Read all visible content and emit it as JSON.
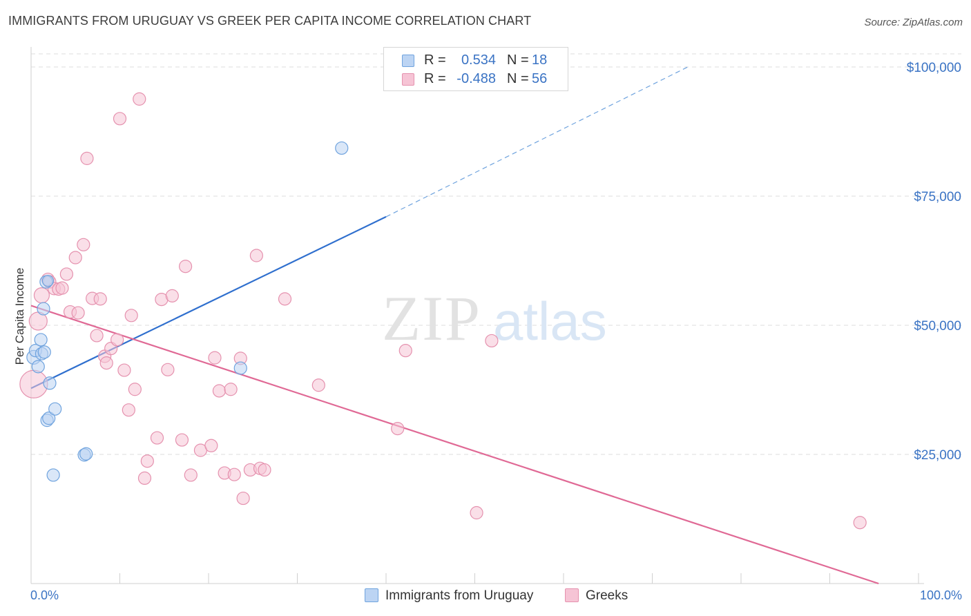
{
  "title": "IMMIGRANTS FROM URUGUAY VS GREEK PER CAPITA INCOME CORRELATION CHART",
  "source": "Source: ZipAtlas.com",
  "watermark": {
    "zip": "ZIP",
    "atlas": "atlas"
  },
  "colors": {
    "blue_stroke": "#6fa3de",
    "blue_fill": "#bcd4f3",
    "blue_line": "#2f6fce",
    "pink_stroke": "#e591ae",
    "pink_fill": "#f6c4d5",
    "pink_line": "#e06995",
    "axis_label": "#3a73c4",
    "grid": "#dddddd"
  },
  "legend": {
    "rows": [
      {
        "r_label": "R =",
        "r_value": "0.534",
        "n_label": "N =",
        "n_value": "18"
      },
      {
        "r_label": "R =",
        "r_value": "-0.488",
        "n_label": "N =",
        "n_value": "56"
      }
    ]
  },
  "chart_data": {
    "type": "scatter",
    "title": "IMMIGRANTS FROM URUGUAY VS GREEK PER CAPITA INCOME CORRELATION CHART",
    "xlabel": "",
    "ylabel": "Per Capita Income",
    "x_range": [
      0,
      100
    ],
    "y_range": [
      0,
      100000
    ],
    "x_tick_labels": {
      "left": "0.0%",
      "right": "100.0%"
    },
    "y_ticks": [
      {
        "value": 25000,
        "label": "$25,000"
      },
      {
        "value": 50000,
        "label": "$50,000"
      },
      {
        "value": 75000,
        "label": "$75,000"
      },
      {
        "value": 100000,
        "label": "$100,000"
      }
    ],
    "series": [
      {
        "name": "Immigrants from Uruguay",
        "color": "#6fa3de",
        "r": 0.534,
        "n": 18,
        "trend": {
          "x0": 0,
          "y0": 37800,
          "x1": 40,
          "y1": 71000,
          "dashed_to_x": 74,
          "dashed_to_y": 100000
        },
        "points": [
          [
            0.3,
            43800,
            10
          ],
          [
            0.5,
            45100,
            9
          ],
          [
            0.8,
            42000,
            9
          ],
          [
            1.1,
            47200,
            9
          ],
          [
            1.2,
            44500,
            9
          ],
          [
            1.4,
            53200,
            9
          ],
          [
            1.5,
            44800,
            9
          ],
          [
            1.7,
            58400,
            9
          ],
          [
            1.8,
            31600,
            9
          ],
          [
            2.0,
            32000,
            9
          ],
          [
            2.1,
            38800,
            9
          ],
          [
            2.5,
            21000,
            9
          ],
          [
            2.7,
            33800,
            9
          ],
          [
            6.0,
            24900,
            9
          ],
          [
            6.2,
            25100,
            9
          ],
          [
            23.6,
            41700,
            9
          ],
          [
            35.0,
            84300,
            9
          ],
          [
            1.9,
            58600,
            8
          ]
        ]
      },
      {
        "name": "Greeks",
        "color": "#e591ae",
        "r": -0.488,
        "n": 56,
        "trend": {
          "x0": 0,
          "y0": 53800,
          "x1": 95.5,
          "y1": 0
        },
        "points": [
          [
            0.3,
            38600,
            20
          ],
          [
            0.8,
            50800,
            13
          ],
          [
            1.2,
            55800,
            11
          ],
          [
            1.9,
            58900,
            9
          ],
          [
            2.1,
            58400,
            9
          ],
          [
            2.6,
            57100,
            9
          ],
          [
            3.1,
            57000,
            9
          ],
          [
            3.5,
            57200,
            9
          ],
          [
            4.0,
            59900,
            9
          ],
          [
            4.4,
            52600,
            9
          ],
          [
            5.0,
            63100,
            9
          ],
          [
            5.3,
            52400,
            9
          ],
          [
            5.9,
            65600,
            9
          ],
          [
            6.3,
            82300,
            9
          ],
          [
            6.9,
            55200,
            9
          ],
          [
            7.4,
            48000,
            9
          ],
          [
            7.8,
            55100,
            9
          ],
          [
            8.3,
            44000,
            9
          ],
          [
            8.5,
            42700,
            9
          ],
          [
            9.0,
            45500,
            9
          ],
          [
            9.7,
            47200,
            9
          ],
          [
            10.0,
            90000,
            9
          ],
          [
            10.5,
            41300,
            9
          ],
          [
            11.0,
            33600,
            9
          ],
          [
            11.3,
            51900,
            9
          ],
          [
            11.7,
            37600,
            9
          ],
          [
            12.2,
            93800,
            9
          ],
          [
            12.8,
            20400,
            9
          ],
          [
            13.1,
            23700,
            9
          ],
          [
            14.2,
            28200,
            9
          ],
          [
            14.7,
            55000,
            9
          ],
          [
            15.4,
            41400,
            9
          ],
          [
            15.9,
            55700,
            9
          ],
          [
            17.0,
            27800,
            9
          ],
          [
            17.4,
            61400,
            9
          ],
          [
            18.0,
            21000,
            9
          ],
          [
            19.1,
            25800,
            9
          ],
          [
            20.3,
            26700,
            9
          ],
          [
            20.7,
            43700,
            9
          ],
          [
            21.2,
            37300,
            9
          ],
          [
            21.8,
            21400,
            9
          ],
          [
            22.5,
            37600,
            9
          ],
          [
            22.9,
            21100,
            9
          ],
          [
            23.6,
            43600,
            9
          ],
          [
            23.9,
            16500,
            9
          ],
          [
            24.7,
            22000,
            9
          ],
          [
            25.4,
            63500,
            9
          ],
          [
            25.8,
            22300,
            9
          ],
          [
            26.3,
            22000,
            9
          ],
          [
            28.6,
            55100,
            9
          ],
          [
            32.4,
            38400,
            9
          ],
          [
            41.3,
            30000,
            9
          ],
          [
            42.2,
            45100,
            9
          ],
          [
            50.2,
            13700,
            9
          ],
          [
            51.9,
            47000,
            9
          ],
          [
            93.4,
            11800,
            9
          ]
        ]
      }
    ]
  }
}
